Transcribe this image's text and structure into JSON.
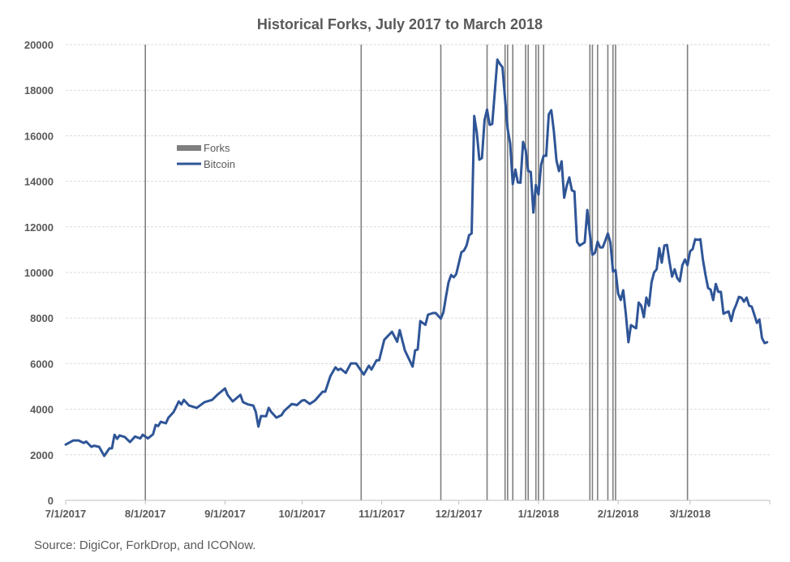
{
  "chart_data": {
    "type": "line",
    "title": "Historical Forks, July 2017 to March 2018",
    "xlabel": "",
    "ylabel": "",
    "xlim": [
      "2017-07-01",
      "2018-03-31"
    ],
    "ylim": [
      0,
      20000
    ],
    "yticks": [
      0,
      2000,
      4000,
      6000,
      8000,
      10000,
      12000,
      14000,
      16000,
      18000,
      20000
    ],
    "xticks": [
      {
        "date": "2017-07-01",
        "label": "7/1/2017"
      },
      {
        "date": "2017-08-01",
        "label": "8/1/2017"
      },
      {
        "date": "2017-09-01",
        "label": "9/1/2017"
      },
      {
        "date": "2017-10-01",
        "label": "10/1/2017"
      },
      {
        "date": "2017-11-01",
        "label": "11/1/2017"
      },
      {
        "date": "2017-12-01",
        "label": "12/1/2017"
      },
      {
        "date": "2018-01-01",
        "label": "1/1/2018"
      },
      {
        "date": "2018-02-01",
        "label": "2/1/2018"
      },
      {
        "date": "2018-03-01",
        "label": "3/1/2018"
      }
    ],
    "grid": true,
    "legend": {
      "placement": "upper-left-inside",
      "entries": [
        "Forks",
        "Bitcoin"
      ]
    },
    "colors": {
      "Forks": "#7f7f7f",
      "Bitcoin": "#2f5597",
      "grid": "#d9d9d9",
      "text": "#595959"
    },
    "series": [
      {
        "name": "Forks",
        "type": "vertical-markers",
        "dates": [
          "2017-08-01",
          "2017-10-24",
          "2017-11-24",
          "2017-12-12",
          "2017-12-19",
          "2017-12-20",
          "2017-12-22",
          "2017-12-27",
          "2017-12-28",
          "2017-12-31",
          "2018-01-01",
          "2018-01-03",
          "2018-01-21",
          "2018-01-22",
          "2018-01-24",
          "2018-01-28",
          "2018-01-30",
          "2018-01-31",
          "2018-02-28"
        ]
      },
      {
        "name": "Bitcoin",
        "type": "line",
        "points": [
          [
            "2017-07-01",
            2450
          ],
          [
            "2017-07-04",
            2630
          ],
          [
            "2017-07-06",
            2630
          ],
          [
            "2017-07-08",
            2520
          ],
          [
            "2017-07-09",
            2580
          ],
          [
            "2017-07-11",
            2350
          ],
          [
            "2017-07-12",
            2400
          ],
          [
            "2017-07-14",
            2350
          ],
          [
            "2017-07-16",
            1950
          ],
          [
            "2017-07-18",
            2280
          ],
          [
            "2017-07-19",
            2280
          ],
          [
            "2017-07-20",
            2880
          ],
          [
            "2017-07-21",
            2700
          ],
          [
            "2017-07-22",
            2850
          ],
          [
            "2017-07-24",
            2780
          ],
          [
            "2017-07-26",
            2560
          ],
          [
            "2017-07-28",
            2800
          ],
          [
            "2017-07-30",
            2720
          ],
          [
            "2017-07-31",
            2880
          ],
          [
            "2017-08-02",
            2720
          ],
          [
            "2017-08-04",
            2900
          ],
          [
            "2017-08-05",
            3310
          ],
          [
            "2017-08-06",
            3260
          ],
          [
            "2017-08-07",
            3450
          ],
          [
            "2017-08-09",
            3380
          ],
          [
            "2017-08-10",
            3630
          ],
          [
            "2017-08-12",
            3880
          ],
          [
            "2017-08-14",
            4340
          ],
          [
            "2017-08-15",
            4210
          ],
          [
            "2017-08-16",
            4410
          ],
          [
            "2017-08-18",
            4160
          ],
          [
            "2017-08-21",
            4060
          ],
          [
            "2017-08-24",
            4310
          ],
          [
            "2017-08-27",
            4410
          ],
          [
            "2017-08-29",
            4630
          ],
          [
            "2017-09-01",
            4910
          ],
          [
            "2017-09-02",
            4630
          ],
          [
            "2017-09-04",
            4340
          ],
          [
            "2017-09-07",
            4630
          ],
          [
            "2017-09-08",
            4310
          ],
          [
            "2017-09-10",
            4210
          ],
          [
            "2017-09-12",
            4160
          ],
          [
            "2017-09-13",
            3880
          ],
          [
            "2017-09-14",
            3240
          ],
          [
            "2017-09-15",
            3700
          ],
          [
            "2017-09-17",
            3690
          ],
          [
            "2017-09-18",
            4060
          ],
          [
            "2017-09-19",
            3880
          ],
          [
            "2017-09-21",
            3630
          ],
          [
            "2017-09-23",
            3740
          ],
          [
            "2017-09-24",
            3920
          ],
          [
            "2017-09-27",
            4230
          ],
          [
            "2017-09-29",
            4180
          ],
          [
            "2017-10-01",
            4380
          ],
          [
            "2017-10-02",
            4400
          ],
          [
            "2017-10-04",
            4230
          ],
          [
            "2017-10-06",
            4380
          ],
          [
            "2017-10-09",
            4770
          ],
          [
            "2017-10-10",
            4770
          ],
          [
            "2017-10-12",
            5450
          ],
          [
            "2017-10-14",
            5840
          ],
          [
            "2017-10-15",
            5720
          ],
          [
            "2017-10-16",
            5780
          ],
          [
            "2017-10-18",
            5590
          ],
          [
            "2017-10-20",
            6010
          ],
          [
            "2017-10-22",
            6010
          ],
          [
            "2017-10-25",
            5520
          ],
          [
            "2017-10-27",
            5910
          ],
          [
            "2017-10-28",
            5740
          ],
          [
            "2017-10-30",
            6150
          ],
          [
            "2017-10-31",
            6150
          ],
          [
            "2017-11-02",
            7050
          ],
          [
            "2017-11-05",
            7400
          ],
          [
            "2017-11-07",
            6960
          ],
          [
            "2017-11-08",
            7470
          ],
          [
            "2017-11-10",
            6580
          ],
          [
            "2017-11-13",
            5870
          ],
          [
            "2017-11-14",
            6580
          ],
          [
            "2017-11-15",
            6620
          ],
          [
            "2017-11-16",
            7870
          ],
          [
            "2017-11-18",
            7700
          ],
          [
            "2017-11-19",
            8150
          ],
          [
            "2017-11-21",
            8220
          ],
          [
            "2017-11-22",
            8220
          ],
          [
            "2017-11-24",
            7970
          ],
          [
            "2017-11-25",
            8260
          ],
          [
            "2017-11-26",
            8930
          ],
          [
            "2017-11-27",
            9570
          ],
          [
            "2017-11-28",
            9890
          ],
          [
            "2017-11-29",
            9790
          ],
          [
            "2017-11-30",
            9930
          ],
          [
            "2017-12-02",
            10890
          ],
          [
            "2017-12-03",
            10960
          ],
          [
            "2017-12-04",
            11180
          ],
          [
            "2017-12-05",
            11640
          ],
          [
            "2017-12-06",
            11710
          ],
          [
            "2017-12-07",
            16870
          ],
          [
            "2017-12-08",
            16120
          ],
          [
            "2017-12-09",
            14950
          ],
          [
            "2017-12-10",
            15020
          ],
          [
            "2017-12-11",
            16690
          ],
          [
            "2017-12-12",
            17150
          ],
          [
            "2017-12-13",
            16480
          ],
          [
            "2017-12-14",
            16520
          ],
          [
            "2017-12-16",
            19340
          ],
          [
            "2017-12-17",
            19150
          ],
          [
            "2017-12-18",
            19010
          ],
          [
            "2017-12-19",
            17620
          ],
          [
            "2017-12-20",
            16300
          ],
          [
            "2017-12-21",
            15660
          ],
          [
            "2017-12-22",
            13880
          ],
          [
            "2017-12-23",
            14520
          ],
          [
            "2017-12-24",
            13950
          ],
          [
            "2017-12-25",
            13940
          ],
          [
            "2017-12-26",
            15730
          ],
          [
            "2017-12-27",
            15370
          ],
          [
            "2017-12-28",
            14450
          ],
          [
            "2017-12-29",
            14410
          ],
          [
            "2017-12-30",
            12630
          ],
          [
            "2017-12-31",
            13840
          ],
          [
            "2018-01-01",
            13420
          ],
          [
            "2018-01-02",
            14730
          ],
          [
            "2018-01-03",
            15120
          ],
          [
            "2018-01-04",
            15120
          ],
          [
            "2018-01-05",
            16940
          ],
          [
            "2018-01-06",
            17120
          ],
          [
            "2018-01-07",
            16190
          ],
          [
            "2018-01-08",
            14910
          ],
          [
            "2018-01-09",
            14450
          ],
          [
            "2018-01-10",
            14880
          ],
          [
            "2018-01-11",
            13280
          ],
          [
            "2018-01-12",
            13800
          ],
          [
            "2018-01-13",
            14170
          ],
          [
            "2018-01-14",
            13600
          ],
          [
            "2018-01-15",
            13560
          ],
          [
            "2018-01-16",
            11350
          ],
          [
            "2018-01-17",
            11180
          ],
          [
            "2018-01-18",
            11250
          ],
          [
            "2018-01-19",
            11320
          ],
          [
            "2018-01-20",
            12740
          ],
          [
            "2018-01-21",
            11710
          ],
          [
            "2018-01-22",
            10780
          ],
          [
            "2018-01-23",
            10860
          ],
          [
            "2018-01-24",
            11350
          ],
          [
            "2018-01-25",
            11100
          ],
          [
            "2018-01-26",
            11100
          ],
          [
            "2018-01-27",
            11400
          ],
          [
            "2018-01-28",
            11710
          ],
          [
            "2018-01-29",
            11320
          ],
          [
            "2018-01-30",
            10040
          ],
          [
            "2018-01-31",
            10110
          ],
          [
            "2018-02-01",
            9080
          ],
          [
            "2018-02-02",
            8790
          ],
          [
            "2018-02-03",
            9220
          ],
          [
            "2018-02-04",
            8180
          ],
          [
            "2018-02-05",
            6940
          ],
          [
            "2018-02-06",
            7690
          ],
          [
            "2018-02-07",
            7620
          ],
          [
            "2018-02-08",
            7550
          ],
          [
            "2018-02-09",
            8680
          ],
          [
            "2018-02-10",
            8540
          ],
          [
            "2018-02-11",
            8040
          ],
          [
            "2018-02-12",
            8900
          ],
          [
            "2018-02-13",
            8540
          ],
          [
            "2018-02-14",
            9570
          ],
          [
            "2018-02-15",
            10000
          ],
          [
            "2018-02-16",
            10140
          ],
          [
            "2018-02-17",
            11070
          ],
          [
            "2018-02-18",
            10430
          ],
          [
            "2018-02-19",
            11180
          ],
          [
            "2018-02-20",
            11210
          ],
          [
            "2018-02-21",
            10460
          ],
          [
            "2018-02-22",
            9820
          ],
          [
            "2018-02-23",
            10140
          ],
          [
            "2018-02-24",
            9750
          ],
          [
            "2018-02-25",
            9610
          ],
          [
            "2018-02-26",
            10320
          ],
          [
            "2018-02-27",
            10570
          ],
          [
            "2018-02-28",
            10320
          ],
          [
            "2018-03-01",
            10930
          ],
          [
            "2018-03-02",
            11030
          ],
          [
            "2018-03-03",
            11460
          ],
          [
            "2018-03-04",
            11430
          ],
          [
            "2018-03-05",
            11460
          ],
          [
            "2018-03-06",
            10570
          ],
          [
            "2018-03-07",
            9900
          ],
          [
            "2018-03-08",
            9320
          ],
          [
            "2018-03-09",
            9250
          ],
          [
            "2018-03-10",
            8790
          ],
          [
            "2018-03-11",
            9500
          ],
          [
            "2018-03-12",
            9150
          ],
          [
            "2018-03-13",
            9150
          ],
          [
            "2018-03-14",
            8190
          ],
          [
            "2018-03-15",
            8250
          ],
          [
            "2018-03-16",
            8290
          ],
          [
            "2018-03-17",
            7870
          ],
          [
            "2018-03-18",
            8330
          ],
          [
            "2018-03-19",
            8600
          ],
          [
            "2018-03-20",
            8930
          ],
          [
            "2018-03-21",
            8890
          ],
          [
            "2018-03-22",
            8720
          ],
          [
            "2018-03-23",
            8900
          ],
          [
            "2018-03-24",
            8540
          ],
          [
            "2018-03-25",
            8500
          ],
          [
            "2018-03-26",
            8150
          ],
          [
            "2018-03-27",
            7790
          ],
          [
            "2018-03-28",
            7940
          ],
          [
            "2018-03-29",
            7120
          ],
          [
            "2018-03-30",
            6900
          ],
          [
            "2018-03-31",
            6940
          ]
        ]
      }
    ]
  },
  "source": "Source: DigiCor, ForkDrop, and ICONow."
}
